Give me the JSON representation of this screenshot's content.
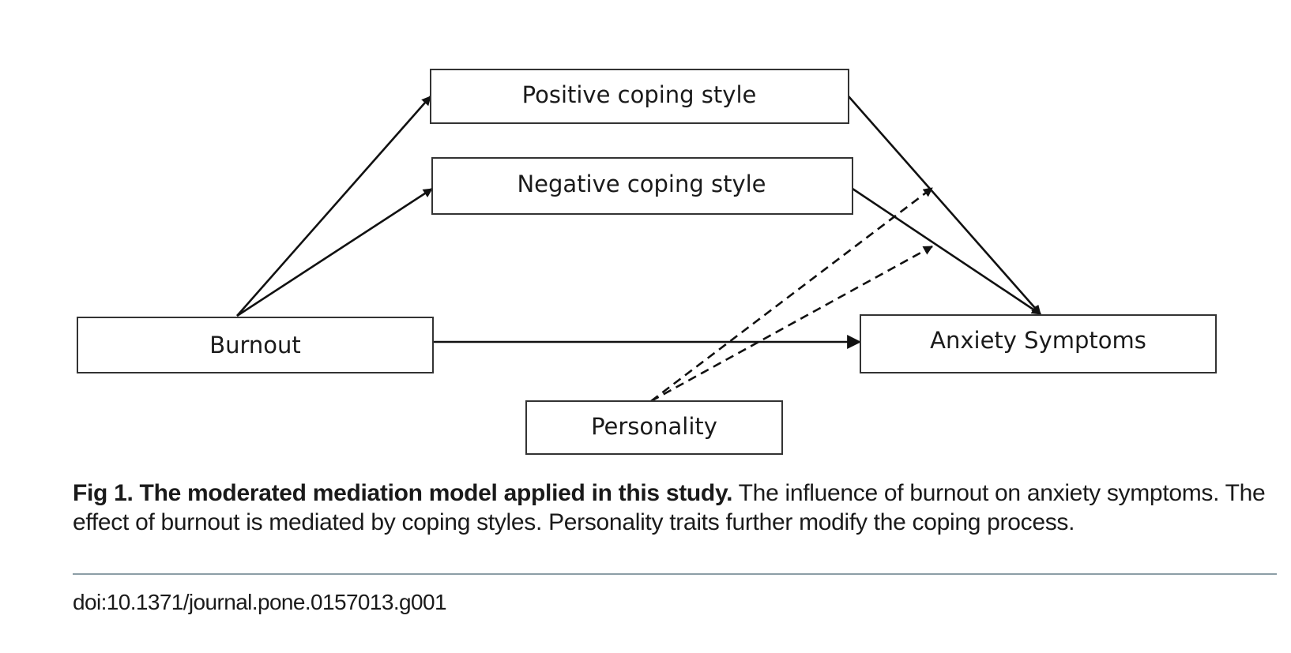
{
  "diagram": {
    "nodes": {
      "positive": "Positive coping style",
      "negative": "Negative coping style",
      "burnout": "Burnout",
      "anxiety": "Anxiety Symptoms",
      "personality": "Personality"
    },
    "edges": [
      {
        "from": "burnout",
        "to": "positive",
        "style": "solid"
      },
      {
        "from": "burnout",
        "to": "negative",
        "style": "solid"
      },
      {
        "from": "burnout",
        "to": "anxiety",
        "style": "solid"
      },
      {
        "from": "positive",
        "to": "anxiety",
        "style": "solid"
      },
      {
        "from": "negative",
        "to": "anxiety",
        "style": "solid"
      },
      {
        "from": "personality",
        "to": "positive-anxiety path",
        "style": "dashed"
      },
      {
        "from": "personality",
        "to": "negative-anxiety path",
        "style": "dashed"
      }
    ]
  },
  "caption": {
    "fig_label": "Fig 1.",
    "title": "The moderated mediation model applied in this study.",
    "text": "The influence of burnout on anxiety symptoms. The effect of burnout is mediated by coping styles. Personality traits further modify the coping process."
  },
  "doi": "doi:10.1371/journal.pone.0157013.g001"
}
